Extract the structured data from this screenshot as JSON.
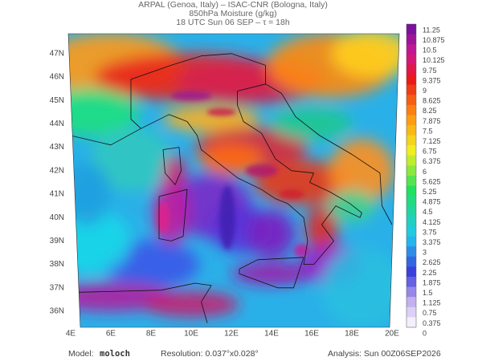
{
  "header": {
    "line1": "ARPAL (Genoa, Italy)  –  ISAC-CNR (Bologna, Italy)",
    "line2": "850hPa Moisture (g/kg)",
    "line3": "18 UTC Sun 06 SEP  –  τ = 18h"
  },
  "map": {
    "lat_labels": [
      "47N",
      "46N",
      "45N",
      "44N",
      "43N",
      "42N",
      "41N",
      "40N",
      "39N",
      "38N",
      "37N",
      "36N"
    ],
    "lon_labels": [
      "4E",
      "6E",
      "8E",
      "10E",
      "12E",
      "14E",
      "16E",
      "18E",
      "20E"
    ]
  },
  "colorbar": {
    "labels": [
      11.25,
      10.875,
      10.5,
      10.125,
      9.75,
      9.375,
      9,
      8.625,
      8.25,
      7.875,
      7.5,
      7.125,
      6.75,
      6.375,
      6,
      5.625,
      5.25,
      4.875,
      4.5,
      4.125,
      3.75,
      3.375,
      3,
      2.625,
      2.25,
      1.875,
      1.5,
      1.125,
      0.75,
      0.375,
      0
    ]
  },
  "footer": {
    "model_label": "Model:",
    "model": "moloch",
    "resolution": "Resolution: 0.037°x0.028°",
    "analysis": "Analysis: Sun 00Z06SEP2026"
  }
}
